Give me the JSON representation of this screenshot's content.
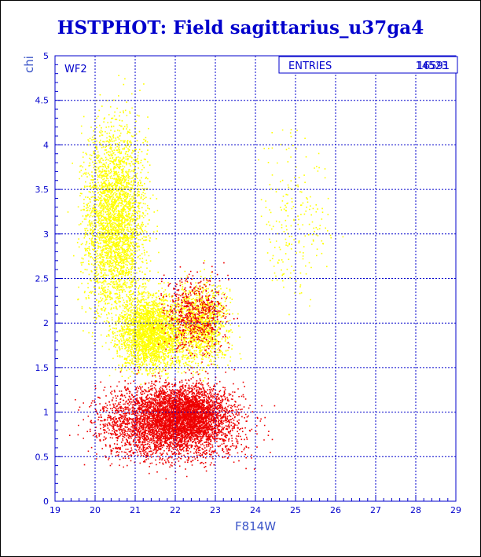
{
  "chart_data": {
    "type": "scatter",
    "title": "HSTPHOT: Field sagittarius_u37ga4",
    "xlabel": "F814W",
    "ylabel": "chi",
    "xlim": [
      19,
      29
    ],
    "ylim": [
      0,
      5
    ],
    "grid": true,
    "xticks": [
      "19",
      "20",
      "21",
      "22",
      "23",
      "24",
      "25",
      "26",
      "27",
      "28",
      "29"
    ],
    "yticks": [
      "0",
      "0.5",
      "1",
      "1.5",
      "2",
      "2.5",
      "3",
      "3.5",
      "4",
      "4.5",
      "5"
    ],
    "annotation": "WF2",
    "stats_box": {
      "label": "ENTRIES",
      "values": [
        "16591",
        "14523"
      ]
    },
    "series": [
      {
        "color": "#ffff00",
        "count": 16591,
        "clusters": [
          {
            "x": [
              19.2,
              21.8
            ],
            "y": [
              1.3,
              5.0
            ],
            "weight": 0.45
          },
          {
            "x": [
              20.0,
              22.8
            ],
            "y": [
              1.2,
              2.6
            ],
            "weight": 0.35
          },
          {
            "x": [
              21.5,
              23.8
            ],
            "y": [
              1.2,
              2.8
            ],
            "weight": 0.17
          },
          {
            "x": [
              23.5,
              26.5
            ],
            "y": [
              1.5,
              4.8
            ],
            "weight": 0.03
          }
        ]
      },
      {
        "color": "#ee0000",
        "count": 14523,
        "clusters": [
          {
            "x": [
              19.0,
              24.8
            ],
            "y": [
              0.2,
              1.6
            ],
            "weight": 0.65
          },
          {
            "x": [
              20.8,
              23.8
            ],
            "y": [
              0.5,
              1.5
            ],
            "weight": 0.25
          },
          {
            "x": [
              21.2,
              23.8
            ],
            "y": [
              1.4,
              2.8
            ],
            "weight": 0.1
          }
        ]
      }
    ]
  },
  "colors": {
    "frame": "#0000cc",
    "grid": "#0000cc",
    "text": "#0000cc"
  }
}
